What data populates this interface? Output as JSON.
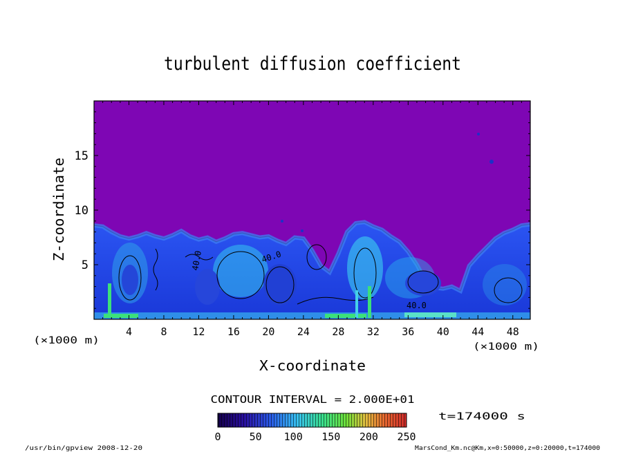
{
  "chart_data": {
    "type": "heatmap",
    "title": "turbulent diffusion coefficient",
    "xlabel": "X-coordinate",
    "ylabel": "Z-coordinate",
    "x_unit_left": "(×1000 m)",
    "x_unit_right": "(×1000 m)",
    "xlim": [
      0,
      50
    ],
    "ylim": [
      0,
      20
    ],
    "x_ticks": [
      4,
      8,
      12,
      16,
      20,
      24,
      28,
      32,
      36,
      40,
      44,
      48
    ],
    "y_ticks": [
      5,
      10,
      15
    ],
    "contour_interval": "CONTOUR INTERVAL = 2.000E+01",
    "contour_labels": [
      "40.0",
      "40.0",
      "40.0"
    ],
    "colorbar": {
      "min": 0,
      "max": 250,
      "ticks": [
        0,
        50,
        100,
        150,
        200,
        250
      ]
    },
    "time_label": "t=174000 s",
    "footer_left": "/usr/bin/gpview  2008-12-20",
    "footer_right": "MarsCond_Km.nc@Km,x=0:50000,z=0:20000,t=174000",
    "colors": {
      "background_field": "#7e06b4",
      "turbulent_blue": "#1e3fe0",
      "mid_cyan": "#35c8ec",
      "high_green": "#3ce07a"
    },
    "plume_top_z": [
      [
        0,
        8.6
      ],
      [
        1,
        8.5
      ],
      [
        2,
        8.0
      ],
      [
        3,
        7.6
      ],
      [
        4,
        7.4
      ],
      [
        5,
        7.6
      ],
      [
        6,
        7.9
      ],
      [
        7,
        7.6
      ],
      [
        8,
        7.4
      ],
      [
        9,
        7.7
      ],
      [
        10,
        8.1
      ],
      [
        11,
        7.6
      ],
      [
        12,
        7.3
      ],
      [
        13,
        7.5
      ],
      [
        14,
        7.1
      ],
      [
        15,
        7.4
      ],
      [
        16,
        7.8
      ],
      [
        17,
        7.9
      ],
      [
        18,
        7.7
      ],
      [
        19,
        7.5
      ],
      [
        20,
        7.6
      ],
      [
        21,
        7.2
      ],
      [
        22,
        6.9
      ],
      [
        23,
        7.5
      ],
      [
        24,
        7.4
      ],
      [
        25,
        6.3
      ],
      [
        26,
        4.9
      ],
      [
        27,
        4.3
      ],
      [
        28,
        6.0
      ],
      [
        29,
        8.0
      ],
      [
        30,
        8.8
      ],
      [
        31,
        8.9
      ],
      [
        32,
        8.5
      ],
      [
        33,
        8.2
      ],
      [
        34,
        7.6
      ],
      [
        35,
        7.1
      ],
      [
        36,
        6.2
      ],
      [
        37,
        5.0
      ],
      [
        38,
        3.5
      ],
      [
        39,
        2.9
      ],
      [
        40,
        2.8
      ],
      [
        41,
        3.0
      ],
      [
        42,
        2.6
      ],
      [
        43,
        4.9
      ],
      [
        44,
        5.8
      ],
      [
        45,
        6.6
      ],
      [
        46,
        7.4
      ],
      [
        47,
        7.9
      ],
      [
        48,
        8.2
      ],
      [
        49,
        8.6
      ],
      [
        50,
        8.7
      ]
    ]
  }
}
